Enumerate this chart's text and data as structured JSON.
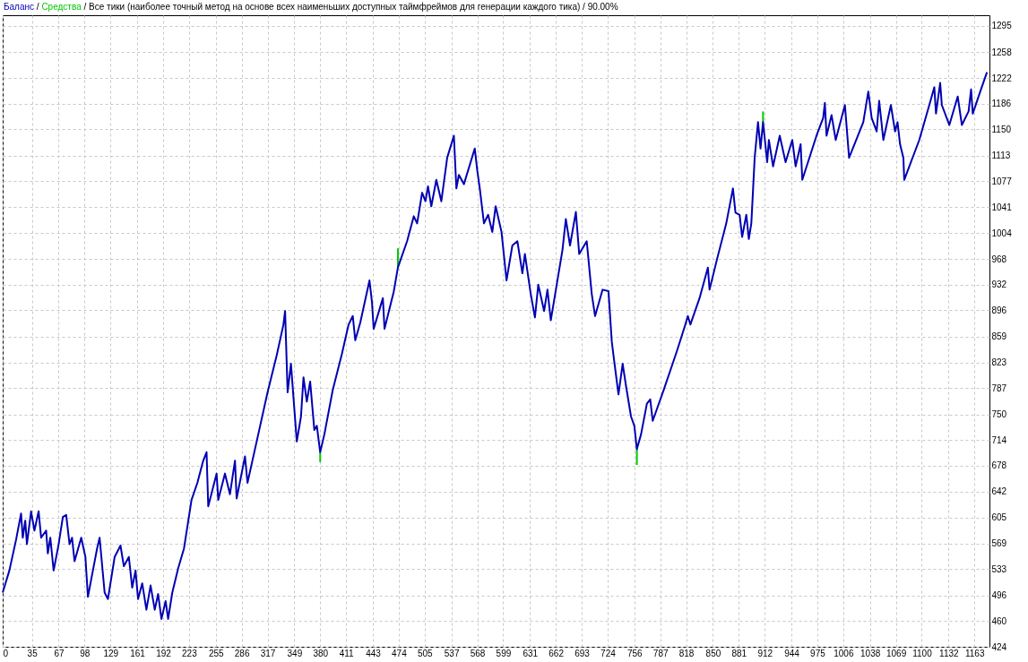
{
  "chart_data": {
    "type": "line",
    "annotations": [
      "/"
    ],
    "title": "/ Все тики (наиболее точный метод на основе всех наименьших доступных таймфреймов для генерации каждого тика) / 90.00%",
    "legend": "top left",
    "grid": true,
    "xlim": [
      0,
      1181
    ],
    "ylim": [
      424,
      1310
    ],
    "xticks": [
      0,
      35,
      67,
      98,
      129,
      161,
      192,
      223,
      255,
      286,
      317,
      349,
      380,
      411,
      443,
      474,
      505,
      537,
      568,
      599,
      631,
      662,
      693,
      724,
      756,
      787,
      818,
      850,
      881,
      912,
      944,
      975,
      1006,
      1038,
      1069,
      1100,
      1132,
      1163
    ],
    "yticks": [
      424,
      460,
      496,
      533,
      569,
      605,
      642,
      678,
      714,
      750,
      787,
      823,
      859,
      896,
      932,
      968,
      1004,
      1041,
      1077,
      1113,
      1150,
      1186,
      1222,
      1258,
      1295
    ],
    "series": [
      {
        "name": "Средства",
        "color": "#00c800",
        "x": [
          380,
          380,
          null,
          473,
          473,
          null,
          759,
          759,
          null,
          910,
          910
        ],
        "values": [
          697,
          683,
          null,
          956,
          983,
          null,
          701,
          679,
          null,
          1160,
          1175
        ]
      },
      {
        "name": "Баланс",
        "color": "#0000b4",
        "x": [
          0,
          8,
          16,
          22,
          24,
          27,
          29,
          34,
          38,
          43,
          46,
          52,
          54,
          57,
          61,
          67,
          72,
          76,
          80,
          83,
          86,
          94,
          99,
          102,
          107,
          113,
          116,
          122,
          126,
          134,
          141,
          145,
          151,
          155,
          159,
          162,
          167,
          172,
          177,
          182,
          186,
          190,
          195,
          198,
          203,
          210,
          217,
          226,
          233,
          240,
          244,
          246,
          256,
          258,
          266,
          272,
          278,
          280,
          290,
          293,
          307,
          317,
          328,
          336,
          338,
          341,
          345,
          352,
          357,
          360,
          364,
          368,
          373,
          376,
          380,
          385,
          395,
          406,
          414,
          419,
          422,
          428,
          439,
          442,
          444,
          455,
          457,
          468,
          473,
          484,
          492,
          496,
          502,
          506,
          509,
          513,
          519,
          525,
          532,
          540,
          543,
          546,
          552,
          565,
          568,
          571,
          576,
          581,
          586,
          590,
          597,
          603,
          610,
          616,
          622,
          625,
          632,
          637,
          641,
          648,
          652,
          656,
          670,
          674,
          679,
          686,
          690,
          699,
          705,
          709,
          718,
          725,
          729,
          731,
          737,
          742,
          746,
          752,
          756,
          759,
          764,
          771,
          775,
          778,
          791,
          807,
          817,
          820,
          823,
          834,
          844,
          846,
          855,
          866,
          874,
          877,
          882,
          885,
          890,
          893,
          896,
          900,
          904,
          907,
          910,
          915,
          917,
          922,
          930,
          937,
          945,
          949,
          955,
          957,
          974,
          982,
          984,
          986,
          992,
          997,
          1008,
          1013,
          1030,
          1036,
          1040,
          1046,
          1049,
          1054,
          1063,
          1068,
          1071,
          1074,
          1078,
          1079,
          1097,
          1109,
          1115,
          1117,
          1122,
          1124,
          1133,
          1143,
          1148,
          1156,
          1159,
          1161,
          1170,
          1178
        ],
        "values": [
          500,
          531,
          574,
          611,
          577,
          601,
          568,
          614,
          587,
          614,
          577,
          587,
          555,
          577,
          531,
          568,
          606,
          609,
          568,
          577,
          544,
          577,
          550,
          494,
          525,
          562,
          577,
          500,
          491,
          550,
          566,
          537,
          550,
          507,
          531,
          491,
          513,
          476,
          510,
          476,
          498,
          463,
          488,
          463,
          500,
          534,
          562,
          630,
          654,
          685,
          697,
          621,
          667,
          630,
          667,
          638,
          685,
          632,
          691,
          654,
          728,
          781,
          833,
          876,
          895,
          781,
          821,
          712,
          747,
          802,
          768,
          796,
          728,
          734,
          697,
          722,
          784,
          835,
          876,
          888,
          854,
          879,
          938,
          907,
          870,
          913,
          870,
          922,
          956,
          993,
          1028,
          1018,
          1061,
          1049,
          1070,
          1042,
          1079,
          1049,
          1110,
          1141,
          1067,
          1086,
          1073,
          1123,
          1092,
          1067,
          1018,
          1030,
          1006,
          1042,
          1006,
          938,
          987,
          993,
          948,
          975,
          919,
          886,
          932,
          895,
          925,
          882,
          981,
          1024,
          987,
          1034,
          975,
          993,
          919,
          888,
          925,
          923,
          852,
          833,
          778,
          821,
          790,
          747,
          734,
          701,
          722,
          765,
          771,
          741,
          784,
          839,
          876,
          888,
          876,
          913,
          956,
          925,
          968,
          1018,
          1067,
          1033,
          1030,
          999,
          1030,
          996,
          1018,
          1110,
          1160,
          1123,
          1160,
          1104,
          1135,
          1098,
          1141,
          1104,
          1135,
          1098,
          1129,
          1079,
          1141,
          1166,
          1187,
          1141,
          1170,
          1135,
          1184,
          1110,
          1160,
          1203,
          1166,
          1147,
          1190,
          1135,
          1184,
          1147,
          1160,
          1129,
          1110,
          1079,
          1135,
          1184,
          1209,
          1172,
          1215,
          1184,
          1156,
          1196,
          1156,
          1175,
          1206,
          1172,
          1203,
          1230
        ]
      }
    ]
  }
}
